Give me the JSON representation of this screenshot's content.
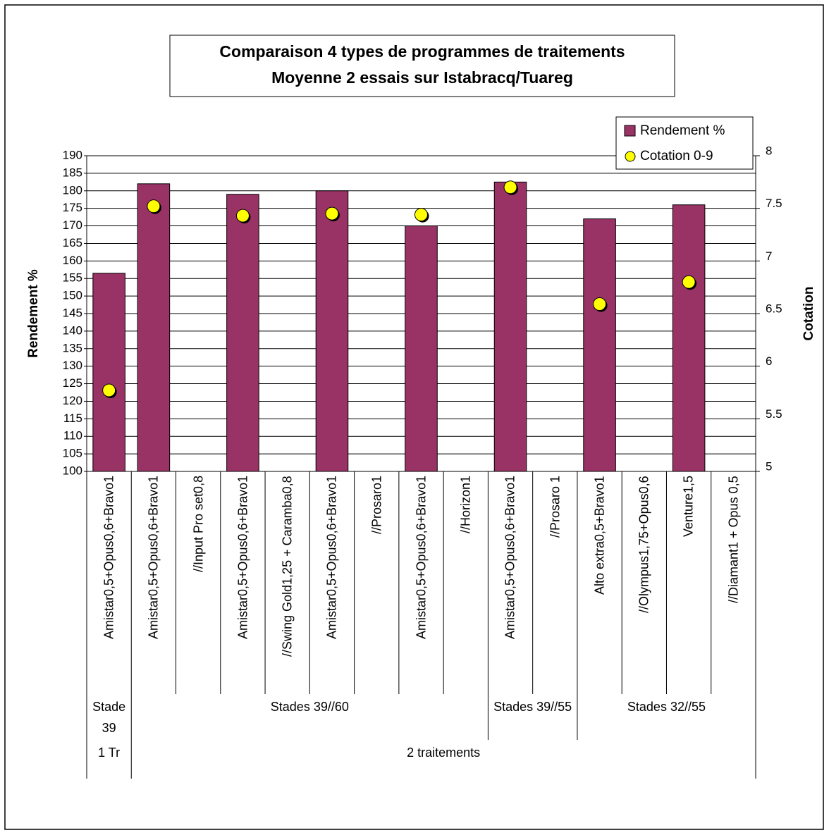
{
  "chart_data": {
    "type": "bar",
    "title": "Comparaison 4 types de programmes de traitements",
    "subtitle": "Moyenne 2 essais sur Istabracq/Tuareg",
    "y_label": "Rendement %",
    "y2_label": "Cotation",
    "categories": [
      "Amistar0,5+Opus0,6+Bravo1",
      "Amistar0,5+Opus0,6+Bravo1",
      "//Input Pro set0,8",
      "Amistar0,5+Opus0,6+Bravo1",
      "//Swing Gold1,25 + Caramba0,8",
      "Amistar0,5+Opus0,6+Bravo1",
      "//Prosaro1",
      "Amistar0,5+Opus0,6+Bravo1",
      "//Horizon1",
      "Amistar0,5+Opus0,6+Bravo1",
      "//Prosaro 1",
      "Alto extra0,5+Bravo1",
      "//Olympus1,75+Opus0,6",
      "Venture1,5",
      "//Diamant1 + Opus 0,5"
    ],
    "group_levels": [
      [
        {
          "label": "Stade 39",
          "span": 1
        },
        {
          "label": "Stades 39//60",
          "span": 8
        },
        {
          "label": "Stades 39//55",
          "span": 2
        },
        {
          "label": "Stades 32//55",
          "span": 4
        }
      ],
      [
        {
          "label": "1 Tr",
          "span": 1
        },
        {
          "label": "2 traitements",
          "span": 14
        }
      ]
    ],
    "series": [
      {
        "name": "Rendement %",
        "type": "bar",
        "color": "#993366",
        "values": [
          156.5,
          182,
          null,
          179,
          null,
          180,
          null,
          170,
          null,
          182.5,
          null,
          172,
          null,
          176,
          null
        ]
      },
      {
        "name": "Cotation 0-9",
        "type": "scatter",
        "axis": "y2",
        "color": "#ffff00",
        "values": [
          5.77,
          7.52,
          null,
          7.43,
          null,
          7.45,
          null,
          7.44,
          null,
          7.7,
          null,
          6.59,
          null,
          6.8,
          null
        ]
      }
    ],
    "ylim": [
      100,
      190
    ],
    "yticks": [
      100,
      105,
      110,
      115,
      120,
      125,
      130,
      135,
      140,
      145,
      150,
      155,
      160,
      165,
      170,
      175,
      180,
      185,
      190
    ],
    "y2lim": [
      5,
      8
    ],
    "y2ticks": [
      5,
      5.5,
      6,
      6.5,
      7,
      7.5,
      8
    ],
    "grid": true,
    "legend": "top-right"
  }
}
